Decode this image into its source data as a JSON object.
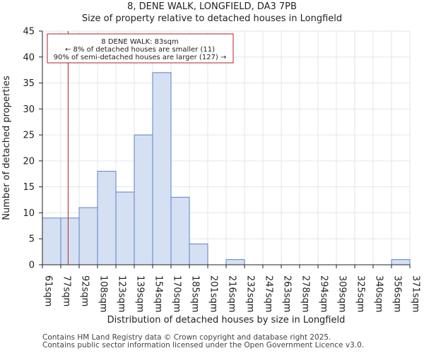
{
  "chart_data": {
    "type": "bar",
    "title": "8, DENE WALK, LONGFIELD, DA3 7PB",
    "subtitle": "Size of property relative to detached houses in Longfield",
    "xlabel": "Distribution of detached houses by size in Longfield",
    "ylabel": "Number of detached properties",
    "bin_edges": [
      61,
      77,
      92,
      108,
      123,
      139,
      154,
      170,
      185,
      201,
      216,
      232,
      247,
      263,
      278,
      294,
      309,
      325,
      340,
      356,
      371
    ],
    "tick_labels": [
      "61sqm",
      "77sqm",
      "92sqm",
      "108sqm",
      "123sqm",
      "139sqm",
      "154sqm",
      "170sqm",
      "185sqm",
      "201sqm",
      "216sqm",
      "232sqm",
      "247sqm",
      "263sqm",
      "278sqm",
      "294sqm",
      "309sqm",
      "325sqm",
      "340sqm",
      "356sqm",
      "371sqm"
    ],
    "values": [
      9,
      9,
      11,
      18,
      14,
      25,
      37,
      13,
      4,
      0,
      1,
      0,
      0,
      0,
      0,
      0,
      0,
      0,
      0,
      1
    ],
    "ylim": [
      0,
      45
    ],
    "yticks": [
      0,
      5,
      10,
      15,
      20,
      25,
      30,
      35,
      40,
      45
    ],
    "grid": true,
    "bar_color": "#d6e0f3",
    "bar_edge_color": "#5b82c4",
    "marker": {
      "value": 83,
      "color": "#b22222",
      "annotation": [
        "8 DENE WALK: 83sqm",
        "← 8% of detached houses are smaller (11)",
        "90% of semi-detached houses are larger (127) →"
      ]
    }
  },
  "footer": {
    "line1": "Contains HM Land Registry data © Crown copyright and database right 2025.",
    "line2": "Contains public sector information licensed under the Open Government Licence v3.0."
  }
}
